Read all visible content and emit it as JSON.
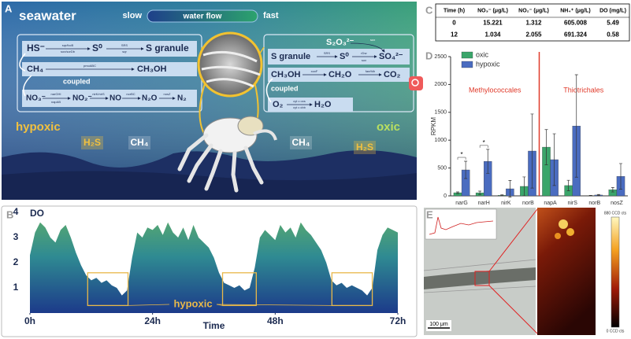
{
  "panel_labels": [
    "A",
    "B",
    "C",
    "D",
    "E"
  ],
  "panel_a": {
    "title": "seawater",
    "flow_slow": "slow",
    "flow_label": "water flow",
    "flow_fast": "fast",
    "left_zone": "hypoxic",
    "right_zone": "oxic",
    "left_box": [
      "HS⁻",
      "S⁰",
      "S granule",
      "sqr/fccB",
      "sox/sorDb",
      "SRS",
      "sqr",
      "CH₄",
      "CH₃OH",
      "pmoABC",
      "coupled",
      "NO₃⁻",
      "NO₂⁻",
      "NO",
      "N₂O",
      "N₂",
      "narGHI",
      "napAB",
      "nirK/nirS",
      "norBC",
      "nosZ"
    ],
    "right_box": [
      "S₂O₃²⁻",
      "sox",
      "S granule",
      "SRS",
      "S⁰",
      "rDsr",
      "sox",
      "SO₄²⁻",
      "CH₃OH",
      "xoxF",
      "CH₂O",
      "fae/fdh",
      "CO₂",
      "coupled",
      "O₂",
      "cyt c oxs",
      "cyt c cbb",
      "H₂O"
    ],
    "seabed": [
      "H₂S",
      "CH₄",
      "CH₄",
      "H₂S"
    ]
  },
  "table": {
    "header": [
      "Time (h)",
      "NO₃⁻ (μg/L)",
      "NO₂⁻ (μg/L)",
      "NH₄⁺ (μg/L)",
      "DO (mg/L)"
    ],
    "rows": [
      [
        0,
        15.221,
        1.312,
        605.008,
        5.49
      ],
      [
        12,
        1.034,
        2.055,
        691.324,
        0.58
      ]
    ]
  },
  "panel_e": {
    "scale_bar": "100 μm",
    "colorbar_max": "880 CCD cts",
    "colorbar_min": "0 CCD cts"
  },
  "chart_data": [
    {
      "type": "area",
      "y_label": "DO",
      "x_label": "Time",
      "x": [
        0,
        1,
        2,
        3,
        4,
        5,
        6,
        7,
        8,
        9,
        10,
        11,
        12,
        13,
        14,
        15,
        16,
        17,
        18,
        19,
        20,
        21,
        22,
        23,
        24,
        25,
        26,
        27,
        28,
        29,
        30,
        31,
        32,
        33,
        34,
        35,
        36,
        37,
        38,
        39,
        40,
        41,
        42,
        43,
        44,
        45,
        46,
        47,
        48,
        49,
        50,
        51,
        52,
        53,
        54,
        55,
        56,
        57,
        58,
        59,
        60,
        61,
        62,
        63,
        64,
        65,
        66,
        67,
        68,
        69,
        70,
        71,
        72
      ],
      "values": [
        2.3,
        3.2,
        3.6,
        3.4,
        3.0,
        2.8,
        3.3,
        3.5,
        3.0,
        2.4,
        1.9,
        1.5,
        1.3,
        1.4,
        1.2,
        1.3,
        1.1,
        1.0,
        0.7,
        0.9,
        2.2,
        3.2,
        3.0,
        3.4,
        3.3,
        3.5,
        3.1,
        3.6,
        3.2,
        3.0,
        3.4,
        2.9,
        3.5,
        3.0,
        2.8,
        2.6,
        2.2,
        1.6,
        1.2,
        1.1,
        1.0,
        1.1,
        0.9,
        1.0,
        1.8,
        3.0,
        3.3,
        3.1,
        2.9,
        3.5,
        3.2,
        3.4,
        3.0,
        3.6,
        3.3,
        3.1,
        2.8,
        2.5,
        2.0,
        1.3,
        1.1,
        1.2,
        1.0,
        1.1,
        1.0,
        0.9,
        0.7,
        1.0,
        2.5,
        3.1,
        3.4,
        3.3,
        3.2
      ],
      "xlim": [
        0,
        72
      ],
      "xticks": [
        {
          "value": 0,
          "label": "0h"
        },
        {
          "value": 24,
          "label": "24h"
        },
        {
          "value": 48,
          "label": "48h"
        },
        {
          "value": 72,
          "label": "72h"
        }
      ],
      "ylim": [
        0,
        4
      ],
      "yticks": [
        1,
        2,
        3,
        4
      ],
      "annotation": {
        "text": "hypoxic",
        "ranges": [
          [
            11.3,
            19.2
          ],
          [
            37.7,
            44.3
          ],
          [
            59.1,
            67
          ]
        ],
        "y_range": [
          0.3,
          1.6
        ],
        "color": "#e8b84a"
      }
    },
    {
      "type": "bar",
      "y_label": "RPKM",
      "categories": [
        "narG",
        "narH",
        "nirK",
        "norB",
        "napA",
        "nirS",
        "norB",
        "nosZ"
      ],
      "series": [
        {
          "name": "oxic",
          "color": "#3aa56a",
          "values": [
            56,
            55,
            10,
            170,
            875,
            185,
            5,
            110
          ],
          "errors": [
            15,
            30,
            8,
            170,
            315,
            95,
            4,
            40
          ]
        },
        {
          "name": "hypoxic",
          "color": "#4a6cc0",
          "values": [
            466,
            620,
            127,
            805,
            650,
            1255,
            15,
            350
          ],
          "errors": [
            155,
            215,
            150,
            665,
            465,
            920,
            10,
            230
          ]
        }
      ],
      "groups": [
        {
          "label": "Methylococcales",
          "count": 4
        },
        {
          "label": "Thiotrichales",
          "count": 4
        }
      ],
      "group_color": "#e03a2a",
      "significance": [
        "*",
        "*"
      ],
      "ylim": [
        0,
        2500
      ],
      "yticks": [
        0,
        500,
        1000,
        1500,
        2000,
        2500
      ],
      "legend": "top-left"
    }
  ]
}
